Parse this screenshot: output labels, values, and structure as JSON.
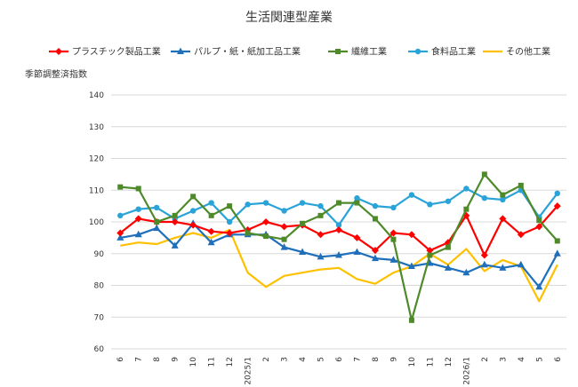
{
  "chart_data": {
    "type": "line",
    "title": "生活関連型産業",
    "ylabel": "季節調整済指数",
    "xlabel": "",
    "ylim": [
      60,
      140
    ],
    "yticks": [
      60,
      70,
      80,
      90,
      100,
      110,
      120,
      130,
      140
    ],
    "grid": true,
    "legend_position": "top",
    "categories": [
      "6",
      "7",
      "8",
      "9",
      "10",
      "11",
      "12",
      "2025/1",
      "2",
      "3",
      "4",
      "5",
      "6",
      "7",
      "8",
      "9",
      "10",
      "11",
      "12",
      "2026/1",
      "2",
      "3",
      "4",
      "5",
      "6"
    ],
    "series": [
      {
        "name": "プラスチック製品工業",
        "color": "#ff0000",
        "marker": "diamond",
        "values": [
          96.5,
          101.0,
          100.0,
          100.0,
          99.0,
          97.0,
          96.5,
          97.5,
          100.0,
          98.5,
          99.0,
          96.0,
          97.5,
          95.0,
          91.0,
          96.5,
          96.0,
          91.0,
          93.5,
          102.0,
          89.5,
          101.0,
          96.0,
          98.5,
          105.0
        ]
      },
      {
        "name": "パルプ・紙・紙加工品工業",
        "color": "#1f6fba",
        "marker": "triangle",
        "values": [
          95.0,
          96.0,
          98.0,
          92.5,
          99.5,
          93.5,
          96.0,
          96.0,
          96.0,
          92.0,
          90.5,
          89.0,
          89.5,
          90.5,
          88.5,
          88.0,
          86.0,
          87.0,
          85.5,
          84.0,
          86.5,
          85.5,
          86.5,
          79.5,
          90.0
        ]
      },
      {
        "name": "繊維工業",
        "color": "#4e8a2a",
        "marker": "square",
        "values": [
          111.0,
          110.5,
          100.0,
          102.0,
          108.0,
          102.0,
          105.0,
          96.5,
          95.5,
          94.5,
          99.5,
          102.0,
          106.0,
          106.0,
          101.0,
          94.5,
          69.0,
          89.5,
          92.0,
          104.0,
          115.0,
          108.5,
          111.5,
          100.5,
          94.0
        ]
      },
      {
        "name": "食料品工業",
        "color": "#2aa3d8",
        "marker": "circle",
        "values": [
          102.0,
          104.0,
          104.5,
          101.0,
          103.5,
          106.0,
          100.0,
          105.5,
          106.0,
          103.5,
          106.0,
          105.0,
          99.0,
          107.5,
          105.0,
          104.5,
          108.5,
          105.5,
          106.5,
          110.5,
          107.5,
          107.0,
          110.0,
          101.5,
          109.0
        ]
      },
      {
        "name": "その他工業",
        "color": "#ffc000",
        "marker": "none",
        "values": [
          92.5,
          93.5,
          93.0,
          95.0,
          96.5,
          95.0,
          97.5,
          84.0,
          79.5,
          83.0,
          84.0,
          85.0,
          85.5,
          82.0,
          80.5,
          84.0,
          86.0,
          90.0,
          86.5,
          91.5,
          84.5,
          88.0,
          86.0,
          75.0,
          86.5
        ]
      }
    ]
  }
}
